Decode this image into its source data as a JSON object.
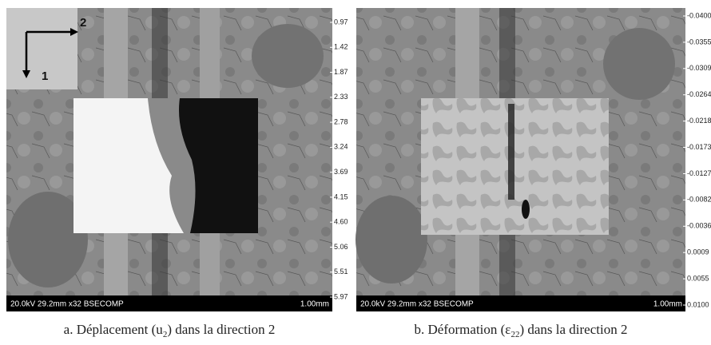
{
  "panels": [
    {
      "axes_indicator": {
        "horizontal": "2",
        "vertical": "1"
      },
      "sem_info": "20.0kV 29.2mm x32 BSECOMP",
      "scale_bar": "1.00mm",
      "scale_labels": [
        "0.97",
        "1.42",
        "1.87",
        "2.33",
        "2.78",
        "3.24",
        "3.69",
        "4.15",
        "4.60",
        "5.06",
        "5.51",
        "5.97"
      ],
      "caption": {
        "prefix": "a. Déplacement  (u",
        "sub": "2",
        "suffix": ") dans la direction 2"
      }
    },
    {
      "sem_info": "20.0kV 29.2mm x32 BSECOMP",
      "scale_bar": "1.00mm",
      "scale_labels": [
        "-0.0400",
        "-0.0355",
        "-0.0309",
        "-0.0264",
        "-0.0218",
        "-0.0173",
        "-0.0127",
        "-0.0082",
        "-0.0036",
        "0.0009",
        "0.0055",
        "0.0100"
      ],
      "caption": {
        "prefix": "b. Déformation (ε",
        "sub": "22",
        "suffix": ") dans la direction 2"
      }
    }
  ]
}
